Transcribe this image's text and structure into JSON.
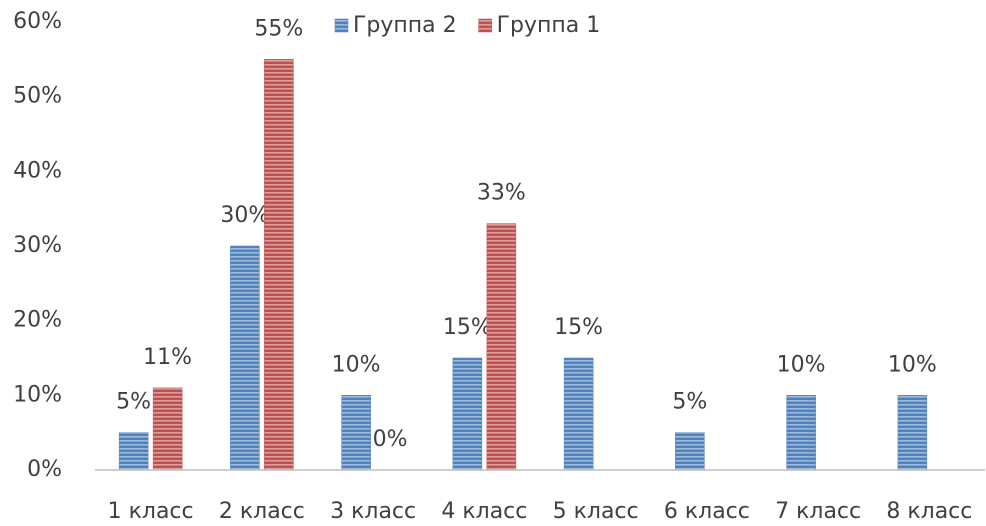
{
  "chart_data": {
    "type": "bar",
    "categories": [
      "1 класс",
      "2 класс",
      "3 класс",
      "4 класс",
      "5 класс",
      "6 класс",
      "7 класс",
      "8 класс"
    ],
    "series": [
      {
        "name": "Группа 2",
        "color": "#4f81bd",
        "values": [
          5,
          30,
          10,
          15,
          15,
          5,
          10,
          10
        ],
        "value_labels": [
          "5%",
          "30%",
          "10%",
          "15%",
          "15%",
          "5%",
          "10%",
          "10%"
        ]
      },
      {
        "name": "Группа 1",
        "color": "#c0504d",
        "values": [
          11,
          55,
          0,
          33,
          null,
          null,
          null,
          null
        ],
        "value_labels": [
          "11%",
          "55%",
          "0%",
          "33%",
          null,
          null,
          null,
          null
        ]
      }
    ],
    "ylim": [
      0,
      60
    ],
    "yticks": [
      {
        "value": 0,
        "label": "0%"
      },
      {
        "value": 10,
        "label": "10%"
      },
      {
        "value": 20,
        "label": "20%"
      },
      {
        "value": 30,
        "label": "30%"
      },
      {
        "value": 40,
        "label": "40%"
      },
      {
        "value": 50,
        "label": "50%"
      },
      {
        "value": 60,
        "label": "60%"
      }
    ],
    "grid": false,
    "legend": "top"
  }
}
